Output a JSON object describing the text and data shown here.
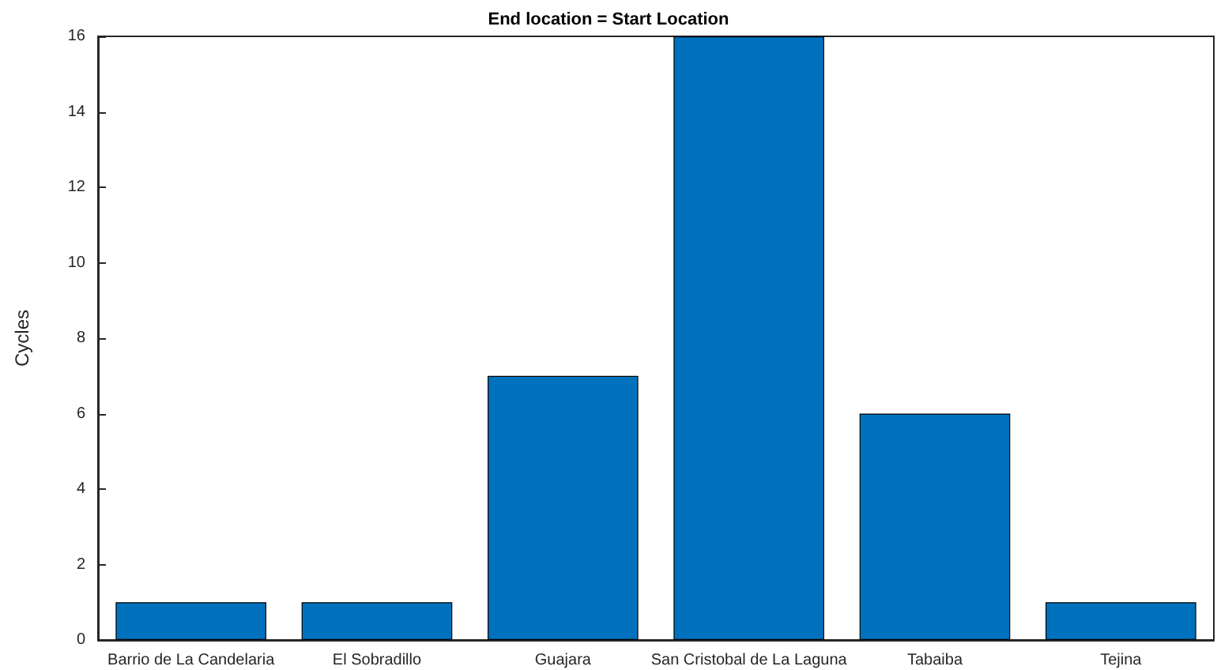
{
  "chart_data": {
    "type": "bar",
    "title": "End location = Start Location",
    "ylabel": "Cycles",
    "categories": [
      "Barrio de La Candelaria",
      "El Sobradillo",
      "Guajara",
      "San Cristobal de La Laguna",
      "Tabaiba",
      "Tejina"
    ],
    "values": [
      1,
      1,
      7,
      16,
      6,
      1
    ],
    "color": "#0072bd",
    "ylim": [
      0,
      16
    ],
    "yticks": [
      0,
      2,
      4,
      6,
      8,
      10,
      12,
      14,
      16
    ],
    "grid": false
  }
}
